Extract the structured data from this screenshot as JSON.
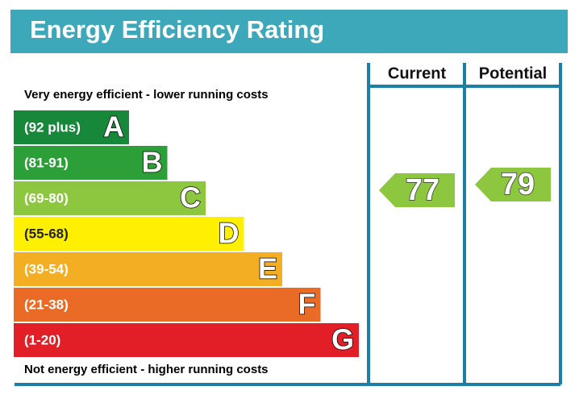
{
  "title": "Energy Efficiency Rating",
  "columns": {
    "current": "Current",
    "potential": "Potential"
  },
  "top_note": "Very energy efficient - lower running costs",
  "bottom_note": "Not energy efficient - higher running costs",
  "bands": [
    {
      "range": "(92 plus)",
      "letter": "A",
      "color": "#17873a"
    },
    {
      "range": "(81-91)",
      "letter": "B",
      "color": "#2c9f38"
    },
    {
      "range": "(69-80)",
      "letter": "C",
      "color": "#8dc63f"
    },
    {
      "range": "(55-68)",
      "letter": "D",
      "color": "#ffef00"
    },
    {
      "range": "(39-54)",
      "letter": "E",
      "color": "#f4ae23"
    },
    {
      "range": "(21-38)",
      "letter": "F",
      "color": "#ea6b25"
    },
    {
      "range": "(1-20)",
      "letter": "G",
      "color": "#e21e26"
    }
  ],
  "current": {
    "value": "77",
    "color": "#8dc63f"
  },
  "potential": {
    "value": "79",
    "color": "#8dc63f"
  }
}
